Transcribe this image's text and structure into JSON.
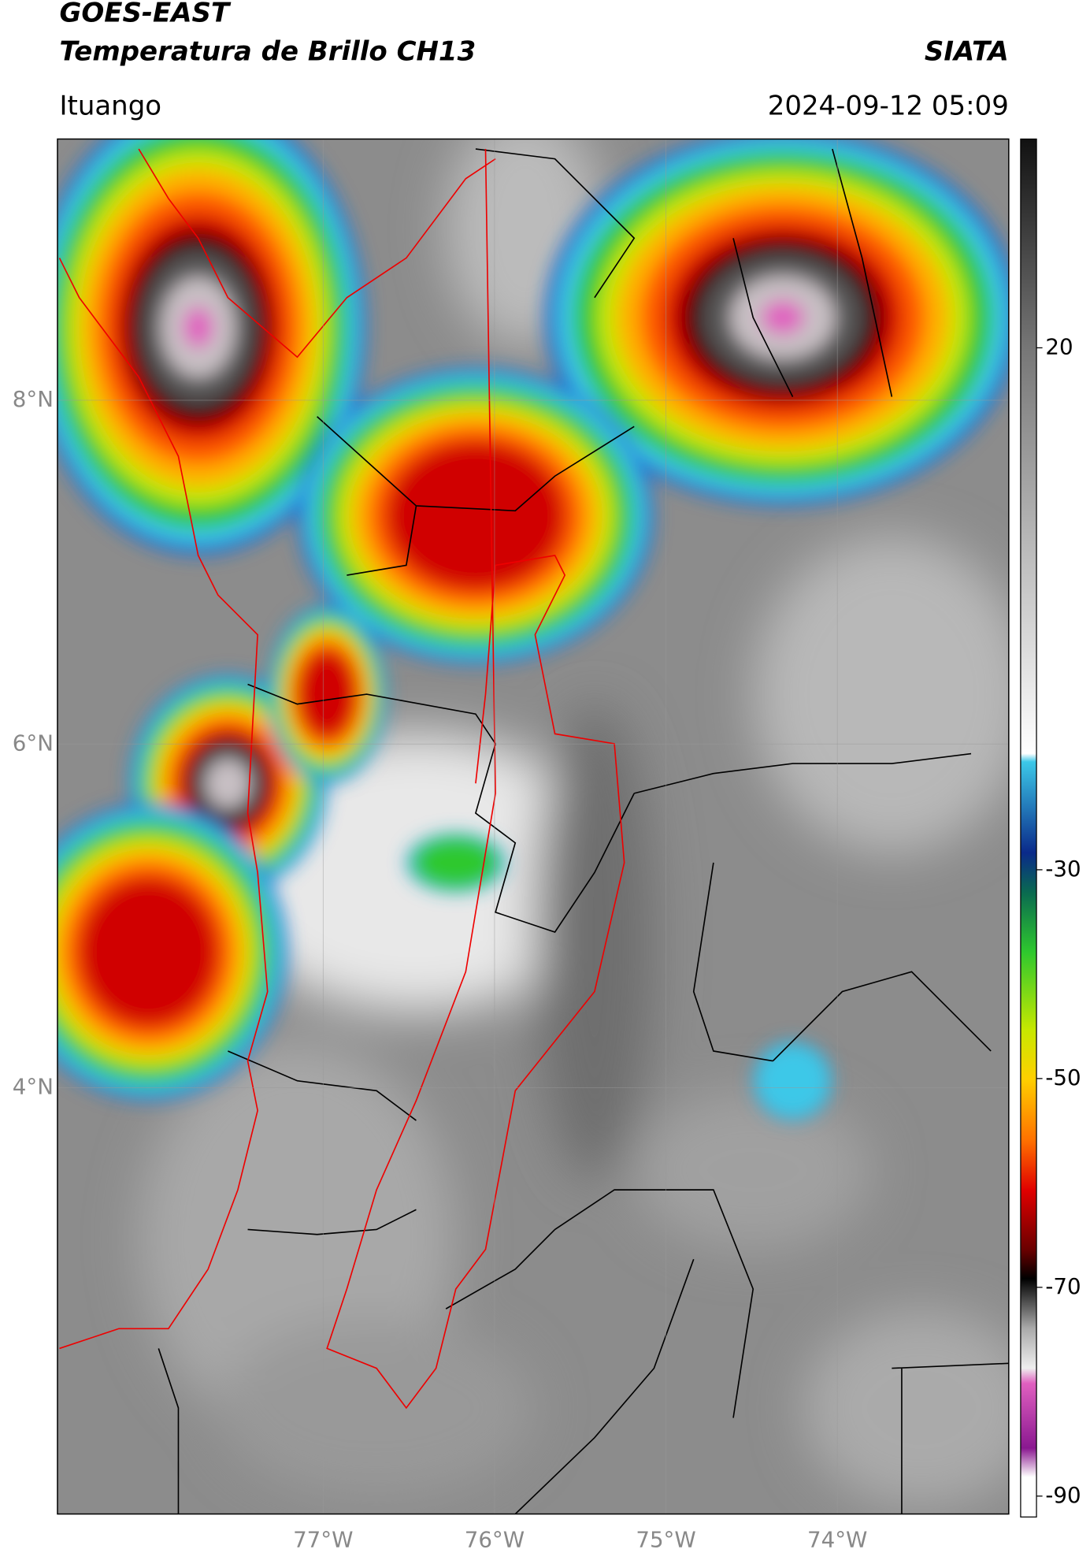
{
  "header": {
    "title": "GOES-EAST",
    "subtitle": "Temperatura de Brillo CH13",
    "agency": "SIATA",
    "location": "Ituango",
    "datetime": "2024-09-12 05:09"
  },
  "map": {
    "xlim": [
      -78.55,
      -73.0
    ],
    "ylim": [
      1.52,
      9.52
    ],
    "xticks": [
      {
        "value": -77,
        "label": "77°W"
      },
      {
        "value": -76,
        "label": "76°W"
      },
      {
        "value": -75,
        "label": "75°W"
      },
      {
        "value": -74,
        "label": "74°W"
      }
    ],
    "yticks": [
      {
        "value": 8,
        "label": "8°N"
      },
      {
        "value": 6,
        "label": "6°N"
      },
      {
        "value": 4,
        "label": "4°N"
      }
    ]
  },
  "colorbar": {
    "clim": [
      -92,
      40
    ],
    "ticks": [
      20,
      -30,
      -50,
      -70,
      -90
    ]
  }
}
